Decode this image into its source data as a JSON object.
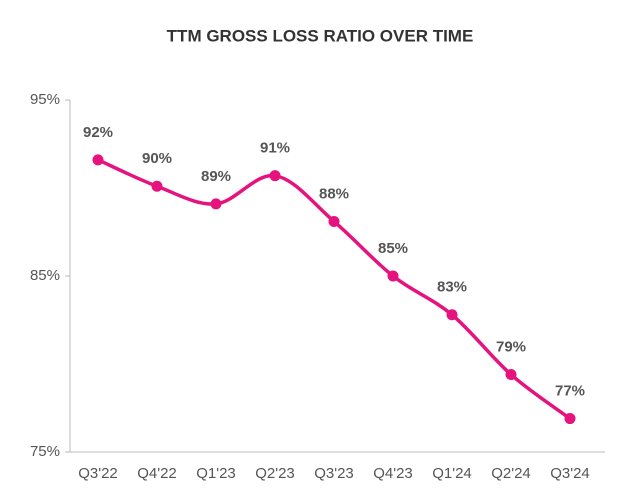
{
  "chart_data": {
    "type": "line",
    "title": "TTM GROSS LOSS RATIO OVER TIME",
    "categories": [
      "Q3'22",
      "Q4'22",
      "Q1'23",
      "Q2'23",
      "Q3'23",
      "Q4'23",
      "Q1'24",
      "Q2'24",
      "Q3'24"
    ],
    "values": [
      91.6,
      90.1,
      89.1,
      90.7,
      88.1,
      85.0,
      82.8,
      79.4,
      76.9
    ],
    "value_labels": [
      "92%",
      "90%",
      "89%",
      "91%",
      "88%",
      "85%",
      "83%",
      "79%",
      "77%"
    ],
    "color": "#e6137e",
    "ylim": [
      75,
      95
    ],
    "yticks": [
      {
        "value": 75,
        "label": "75%"
      },
      {
        "value": 85,
        "label": "85%"
      },
      {
        "value": 95,
        "label": "95%"
      }
    ]
  }
}
